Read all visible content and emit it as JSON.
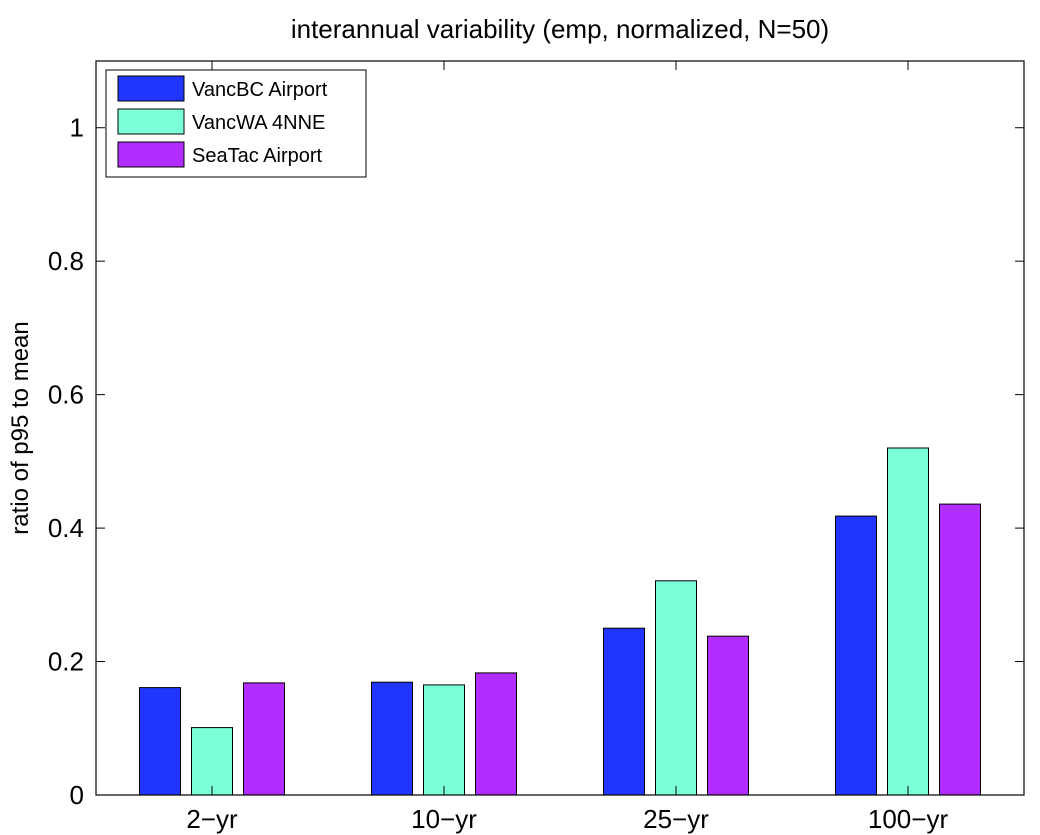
{
  "chart_data": {
    "type": "bar",
    "title": "interannual variability (emp, normalized, N=50)",
    "xlabel": "",
    "ylabel": "ratio of p95 to mean",
    "categories": [
      "2−yr",
      "10−yr",
      "25−yr",
      "100−yr"
    ],
    "ylim": [
      0,
      1.1
    ],
    "yticks": [
      0,
      0.2,
      0.4,
      0.6,
      0.8,
      1
    ],
    "ytick_labels": [
      "0",
      "0.2",
      "0.4",
      "0.6",
      "0.8",
      "1"
    ],
    "grid": false,
    "legend_position": "top-left",
    "series": [
      {
        "name": "VancBC Airport",
        "color": "#2036ff",
        "values": [
          0.161,
          0.169,
          0.25,
          0.418
        ]
      },
      {
        "name": "VancWA 4NNE",
        "color": "#7bffd9",
        "values": [
          0.101,
          0.165,
          0.321,
          0.52
        ]
      },
      {
        "name": "SeaTac Airport",
        "color": "#b22dff",
        "values": [
          0.168,
          0.183,
          0.238,
          0.436
        ]
      }
    ]
  }
}
